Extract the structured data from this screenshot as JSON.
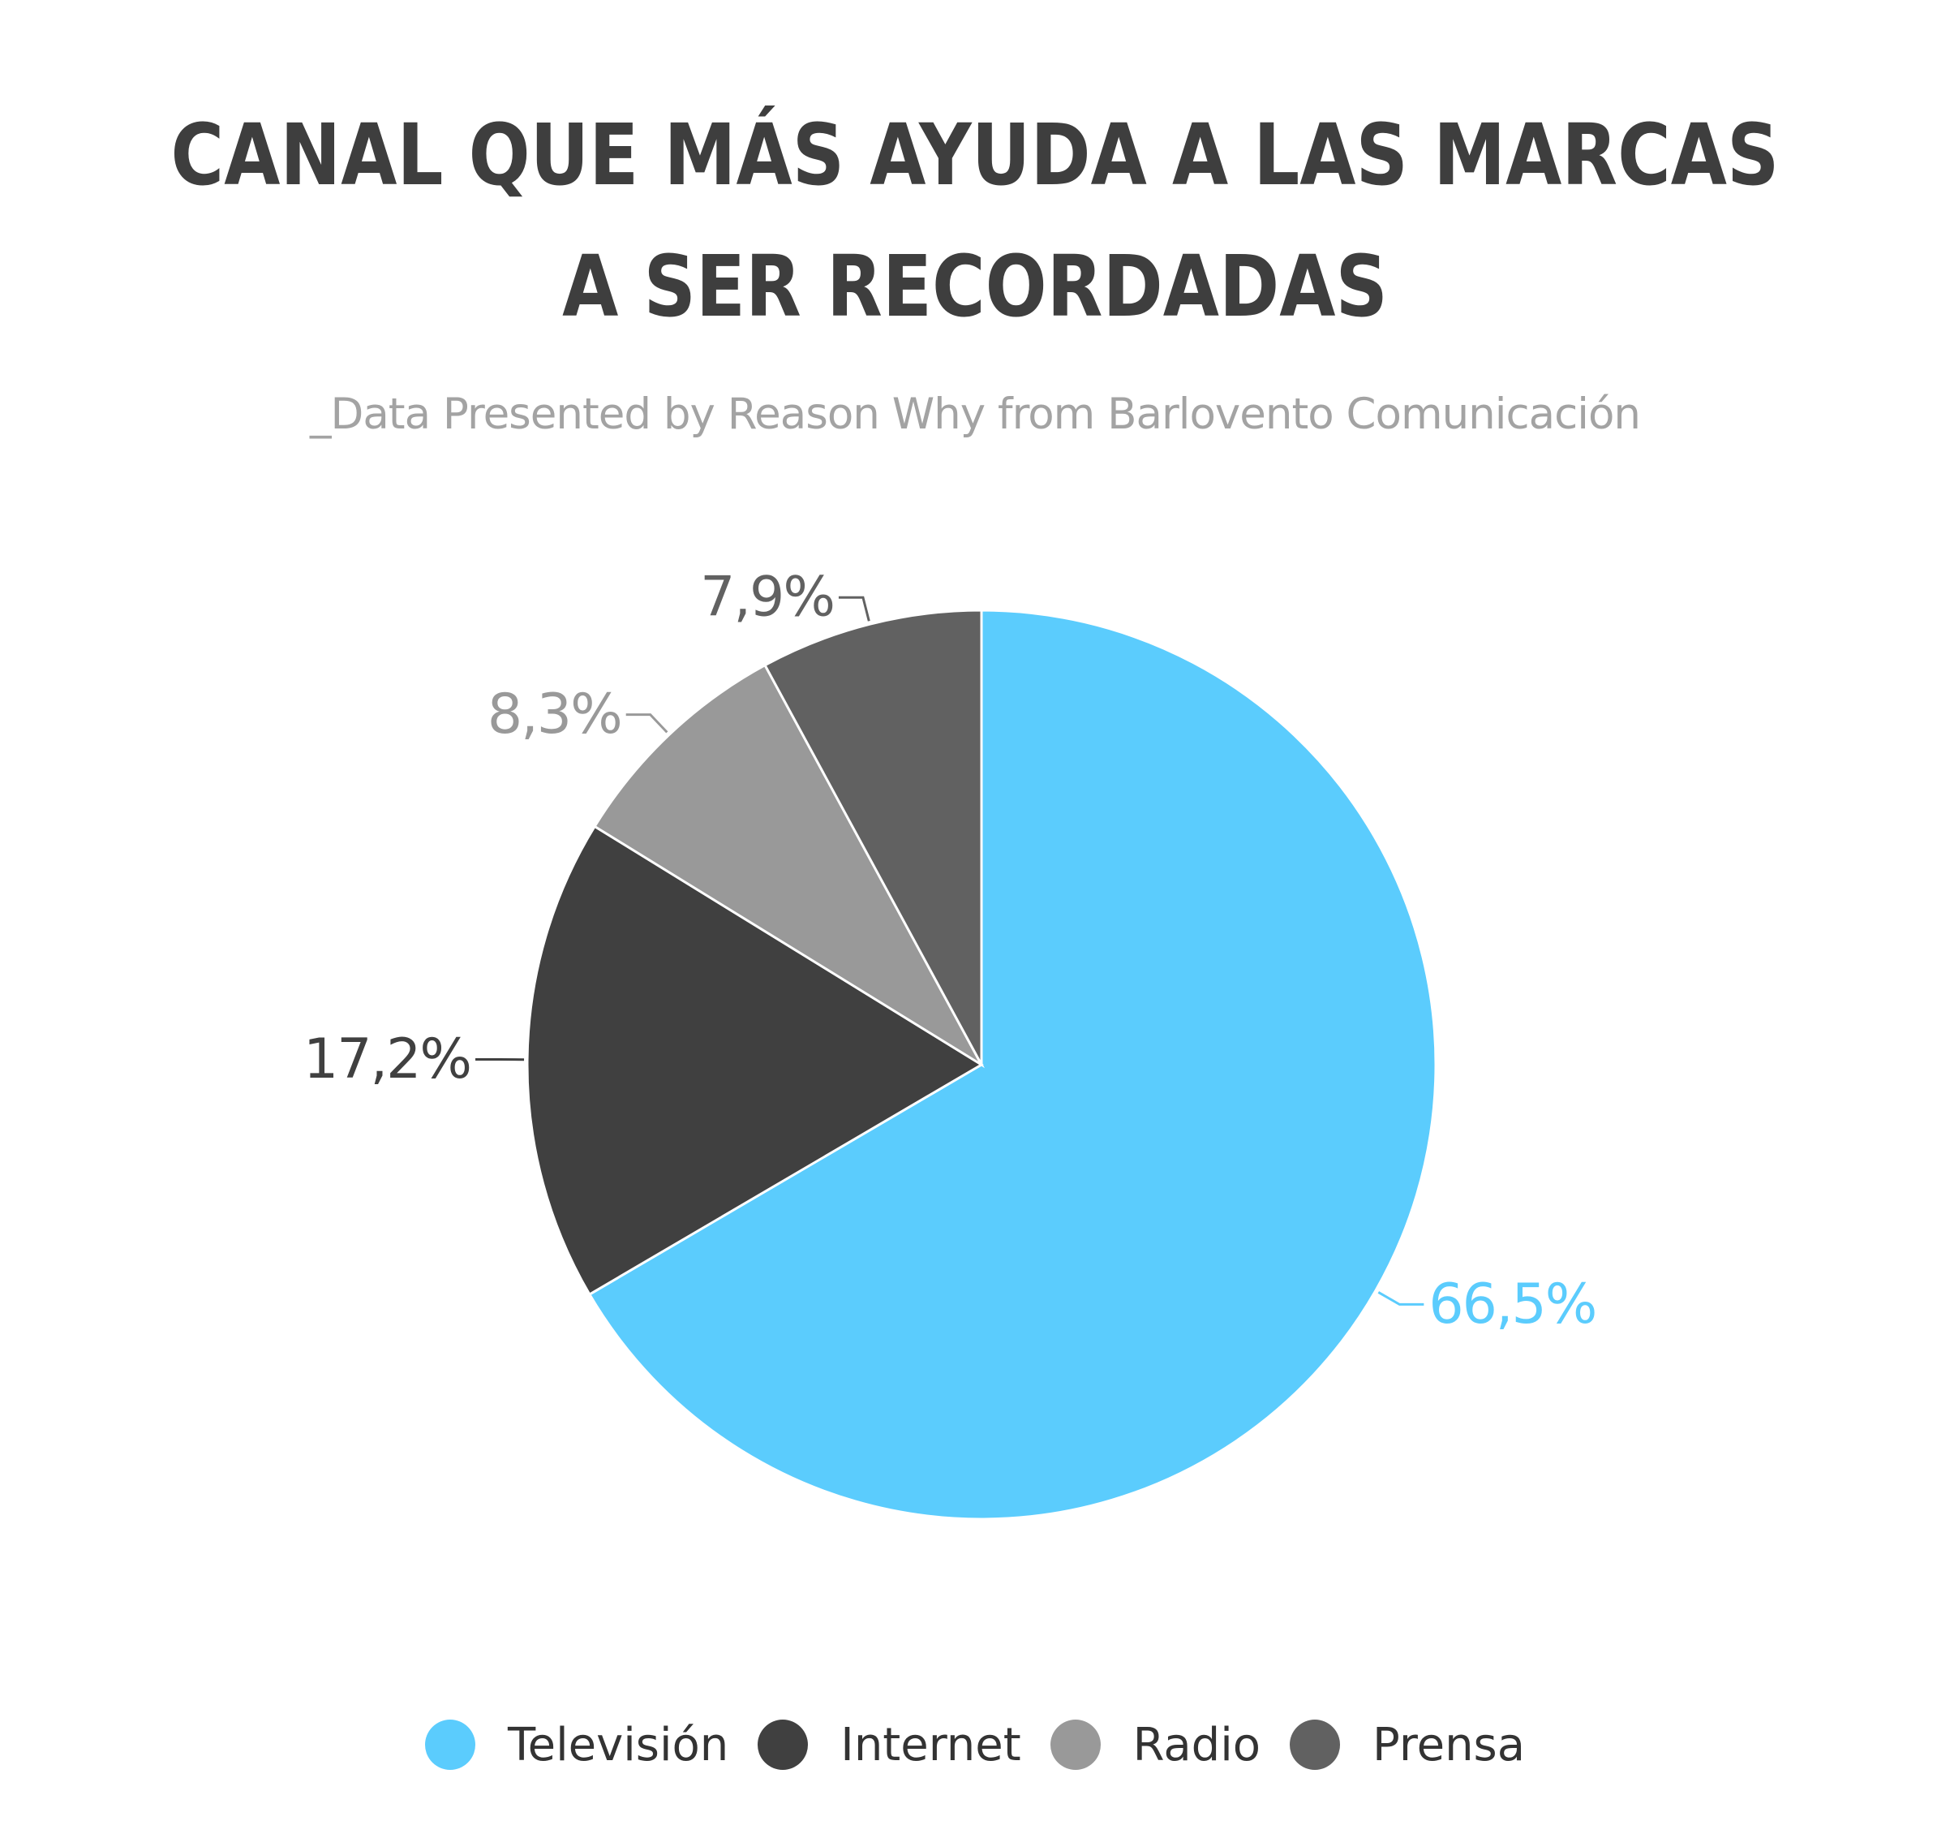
{
  "title_line1": "CANAL QUE MÁS AYUDA A LAS MARCAS",
  "title_line2": "A SER RECORDADAS",
  "subtitle": "_Data Presented by Reason Why from Barlovento Comunicación",
  "chart_data": {
    "type": "pie",
    "title": "CANAL QUE MÁS AYUDA A LAS MARCAS A SER RECORDADAS",
    "subtitle": "_Data Presented by Reason Why from Barlovento Comunicación",
    "legend_position": "bottom",
    "slices": [
      {
        "name": "Televisión",
        "value": 66.5,
        "label": "66,5%",
        "color": "#5bccfd"
      },
      {
        "name": "Internet",
        "value": 17.2,
        "label": "17,2%",
        "color": "#404040"
      },
      {
        "name": "Radio",
        "value": 8.3,
        "label": "8,3%",
        "color": "#999999"
      },
      {
        "name": "Prensa",
        "value": 7.9,
        "label": "7,9%",
        "color": "#616161"
      }
    ]
  }
}
